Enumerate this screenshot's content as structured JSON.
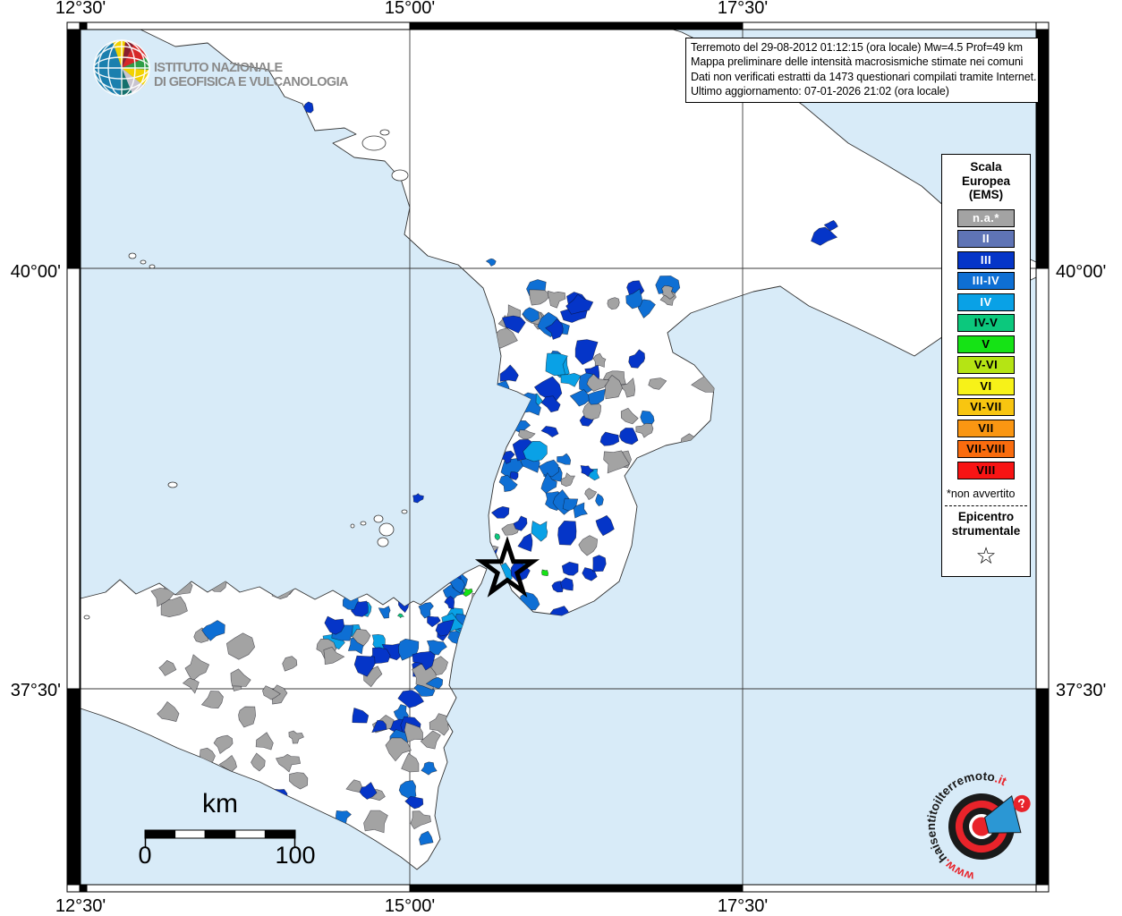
{
  "coords": {
    "top": [
      "12°30'",
      "15°00'",
      "17°30'"
    ],
    "bottom": [
      "12°30'",
      "15°00'",
      "17°30'"
    ],
    "left": [
      "40°00'",
      "37°30'"
    ],
    "right": [
      "40°00'",
      "37°30'"
    ]
  },
  "info_box": {
    "line1": "Terremoto del 29-08-2012 01:12:15 (ora locale) Mw=4.5 Prof=49 km",
    "line2": "Mappa preliminare delle intensità macrosismiche stimate nei comuni",
    "line3": "Dati non verificati estratti da 1473 questionari compilati tramite Internet.",
    "line4": "Ultimo aggiornamento: 07-01-2026 21:02 (ora locale)"
  },
  "ingv": {
    "line1": "ISTITUTO NAZIONALE",
    "line2": "DI GEOFISICA E VULCANOLOGIA"
  },
  "legend": {
    "title_lines": [
      "Scala",
      "Europea",
      "(EMS)"
    ],
    "items": [
      {
        "label": "n.a.*",
        "key": "na",
        "text_color": "#ffffff"
      },
      {
        "label": "II",
        "key": "ii",
        "text_color": "#ffffff"
      },
      {
        "label": "III",
        "key": "iii",
        "text_color": "#ffffff"
      },
      {
        "label": "III-IV",
        "key": "iii_iv",
        "text_color": "#ffffff"
      },
      {
        "label": "IV",
        "key": "iv",
        "text_color": "#ffffff"
      },
      {
        "label": "IV-V",
        "key": "iv_v",
        "text_color": "#000000"
      },
      {
        "label": "V",
        "key": "v",
        "text_color": "#000000"
      },
      {
        "label": "V-VI",
        "key": "v_vi",
        "text_color": "#000000"
      },
      {
        "label": "VI",
        "key": "vi",
        "text_color": "#000000"
      },
      {
        "label": "VI-VII",
        "key": "vi_vii",
        "text_color": "#000000"
      },
      {
        "label": "VII",
        "key": "vii",
        "text_color": "#000000"
      },
      {
        "label": "VII-VIII",
        "key": "vii_viii",
        "text_color": "#000000"
      },
      {
        "label": "VIII",
        "key": "viii",
        "text_color": "#000000"
      }
    ],
    "footnote": "*non avvertito",
    "epicenter_line1": "Epicentro",
    "epicenter_line2": "strumentale",
    "star_glyph": "☆"
  },
  "scalebar": {
    "unit": "km",
    "start": "0",
    "end": "100"
  },
  "watermark": {
    "url_text": "www.haisentitoilterremoto.it",
    "question_mark": "?"
  },
  "palette": {
    "na": "#a3a3a3",
    "ii": "#5f74b5",
    "iii": "#0535c8",
    "iii_iv": "#0e6fd4",
    "iv": "#09a1e6",
    "iv_v": "#0cc87d",
    "v": "#15e315",
    "v_vi": "#b5e414",
    "vi": "#f7f218",
    "vi_vii": "#f8c510",
    "vii": "#fa9612",
    "vii_viii": "#f96c0e",
    "viii": "#f81414",
    "sea": "#d8ebf8",
    "land": "#ffffff",
    "grid": "#3a3a3a",
    "border": "#2b2b2b"
  }
}
